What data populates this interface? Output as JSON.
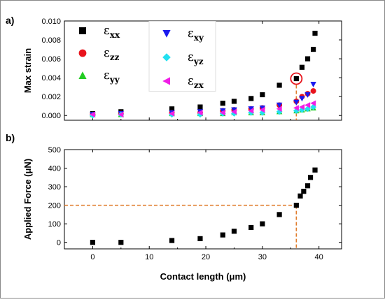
{
  "chart_data": [
    {
      "panel_label": "a)",
      "type": "scatter",
      "ylabel": "Max strain",
      "xlim": [
        -5,
        44
      ],
      "ylim": [
        -0.0005,
        0.01
      ],
      "yticks": [
        "0.000",
        "0.002",
        "0.004",
        "0.006",
        "0.008",
        "0.010"
      ],
      "xticks": [],
      "legend_position": "top-left",
      "series": [
        {
          "name": "εxx",
          "symbol": "ε",
          "sub": "xx",
          "marker": "square",
          "color": "#000000",
          "x": [
            0,
            5,
            14,
            19,
            23,
            25,
            28,
            30,
            33,
            36,
            37,
            38,
            39
          ],
          "y": [
            0.0002,
            0.0004,
            0.0007,
            0.0009,
            0.0013,
            0.0015,
            0.0018,
            0.0022,
            0.0032,
            0.0039,
            0.0051,
            0.006,
            0.007
          ]
        },
        {
          "name": "εzz",
          "symbol": "ε",
          "sub": "zz",
          "marker": "circle",
          "color": "#e8141c",
          "x": [
            0,
            5,
            14,
            19,
            23,
            25,
            28,
            30,
            33,
            36,
            37,
            38,
            39
          ],
          "y": [
            0.0001,
            0.0002,
            0.0003,
            0.0003,
            0.0005,
            0.0006,
            0.0007,
            0.0008,
            0.0011,
            0.0015,
            0.002,
            0.0023,
            0.0026
          ]
        },
        {
          "name": "εyy",
          "symbol": "ε",
          "sub": "yy",
          "marker": "triangle-up",
          "color": "#22cc22",
          "x": [
            0,
            5,
            14,
            19,
            23,
            25,
            28,
            30,
            33,
            36,
            37,
            38,
            39
          ],
          "y": [
            0.0001,
            0.0001,
            0.0002,
            0.0002,
            0.0002,
            0.0003,
            0.0003,
            0.0003,
            0.0004,
            0.0005,
            0.0006,
            0.0007,
            0.0008
          ]
        },
        {
          "name": "εxy",
          "symbol": "ε",
          "sub": "xy",
          "marker": "triangle-down",
          "color": "#1a1aee",
          "x": [
            0,
            5,
            14,
            19,
            23,
            25,
            28,
            30,
            33,
            36,
            37,
            38,
            39
          ],
          "y": [
            0.0001,
            0.0002,
            0.0003,
            0.0004,
            0.0005,
            0.0006,
            0.0007,
            0.0008,
            0.0011,
            0.0014,
            0.0018,
            0.0022,
            0.0033
          ]
        },
        {
          "name": "εyz",
          "symbol": "ε",
          "sub": "yz",
          "marker": "diamond",
          "color": "#22e0f0",
          "x": [
            0,
            5,
            14,
            19,
            23,
            25,
            28,
            30,
            33,
            36,
            37,
            38,
            39
          ],
          "y": [
            0.0,
            0.0001,
            0.0001,
            0.0001,
            0.0002,
            0.0002,
            0.0003,
            0.0003,
            0.0004,
            0.0005,
            0.0006,
            0.0007,
            0.0009
          ]
        },
        {
          "name": "εzx",
          "symbol": "ε",
          "sub": "zx",
          "marker": "triangle-left",
          "color": "#f01ee6",
          "x": [
            0,
            5,
            14,
            19,
            23,
            25,
            28,
            30,
            33,
            36,
            37,
            38,
            39
          ],
          "y": [
            0.0001,
            0.0001,
            0.0002,
            0.0003,
            0.0003,
            0.0004,
            0.0005,
            0.0006,
            0.0007,
            0.0008,
            0.0009,
            0.0011,
            0.0013
          ]
        }
      ],
      "extra_points": [
        {
          "x": 39.3,
          "y": 0.0087,
          "series": "εxx"
        }
      ],
      "annotation": {
        "type": "circle",
        "x": 36,
        "y": 0.0039,
        "color": "#e8141c"
      }
    },
    {
      "panel_label": "b)",
      "type": "scatter",
      "ylabel": "Applied Force (μN)",
      "xlabel": "Contact length (μm)",
      "xlim": [
        -5,
        44
      ],
      "ylim": [
        -35,
        500
      ],
      "xticks": [
        "0",
        "10",
        "20",
        "30",
        "40"
      ],
      "yticks": [
        "0",
        "100",
        "200",
        "300",
        "400",
        "500"
      ],
      "series": [
        {
          "name": "",
          "marker": "square",
          "color": "#000000",
          "x": [
            0,
            5,
            14,
            19,
            23,
            25,
            28,
            30,
            33,
            36,
            36.7,
            37.3,
            38,
            38.5,
            39.3
          ],
          "y": [
            0,
            0,
            10,
            20,
            40,
            60,
            80,
            100,
            150,
            200,
            250,
            275,
            305,
            350,
            390
          ]
        }
      ],
      "guide": {
        "x": 36,
        "y": 200,
        "color": "#e07b2a"
      }
    }
  ]
}
